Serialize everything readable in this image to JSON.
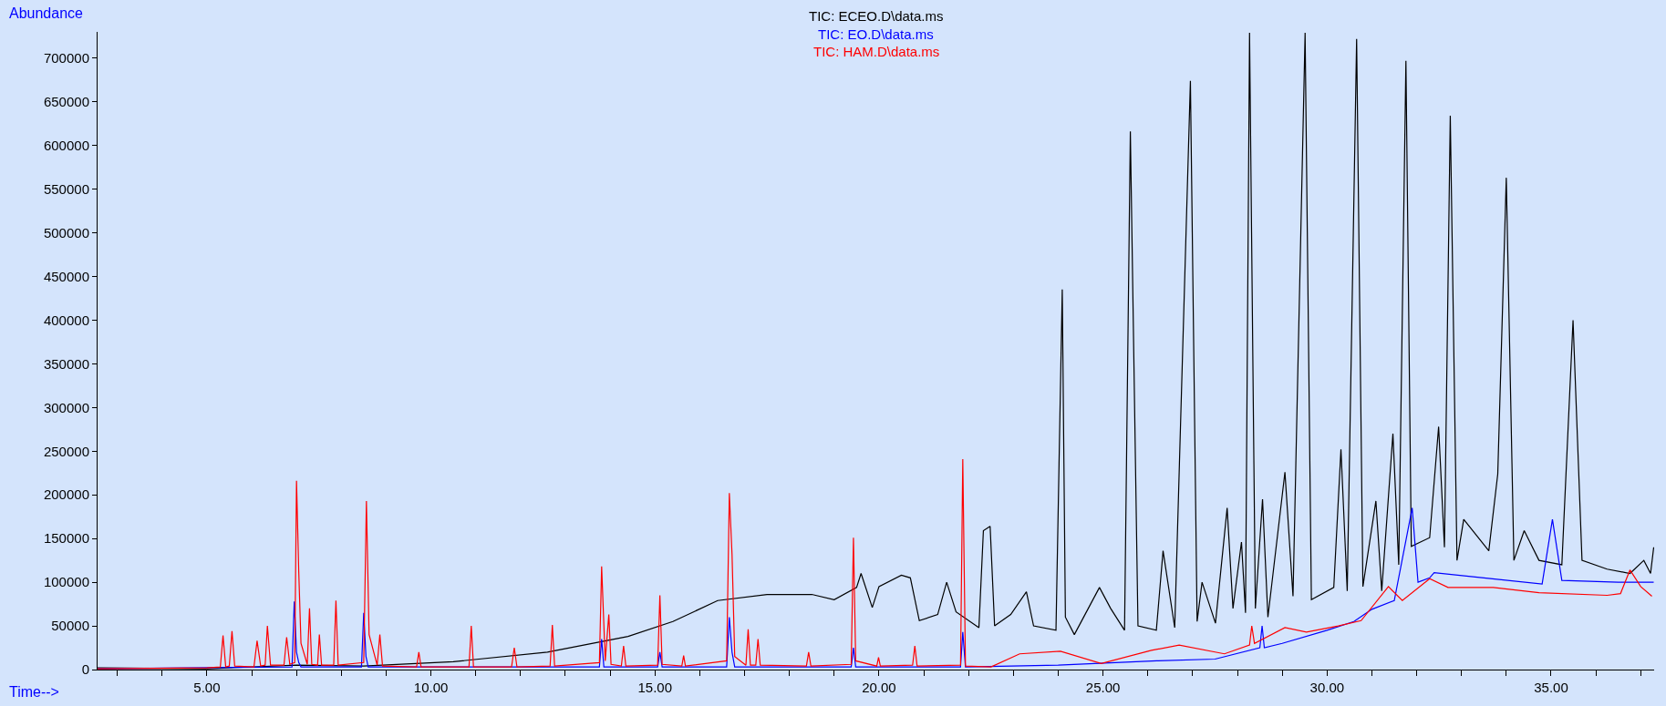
{
  "chart_data": {
    "type": "line",
    "xlabel": "Time-->",
    "ylabel": "Abundance",
    "xlim": [
      2.56,
      37.3
    ],
    "ylim": [
      0,
      730000
    ],
    "xticks": [
      {
        "value": 3,
        "label": null
      },
      {
        "value": 4,
        "label": null
      },
      {
        "value": 5,
        "label": "5.00"
      },
      {
        "value": 6,
        "label": null
      },
      {
        "value": 7,
        "label": null
      },
      {
        "value": 8,
        "label": null
      },
      {
        "value": 9,
        "label": null
      },
      {
        "value": 10,
        "label": "10.00"
      },
      {
        "value": 11,
        "label": null
      },
      {
        "value": 12,
        "label": null
      },
      {
        "value": 13,
        "label": null
      },
      {
        "value": 14,
        "label": null
      },
      {
        "value": 15,
        "label": "15.00"
      },
      {
        "value": 16,
        "label": null
      },
      {
        "value": 17,
        "label": null
      },
      {
        "value": 18,
        "label": null
      },
      {
        "value": 19,
        "label": null
      },
      {
        "value": 20,
        "label": "20.00"
      },
      {
        "value": 21,
        "label": null
      },
      {
        "value": 22,
        "label": null
      },
      {
        "value": 23,
        "label": null
      },
      {
        "value": 24,
        "label": null
      },
      {
        "value": 25,
        "label": "25.00"
      },
      {
        "value": 26,
        "label": null
      },
      {
        "value": 27,
        "label": null
      },
      {
        "value": 28,
        "label": null
      },
      {
        "value": 29,
        "label": null
      },
      {
        "value": 30,
        "label": "30.00"
      },
      {
        "value": 31,
        "label": null
      },
      {
        "value": 32,
        "label": null
      },
      {
        "value": 33,
        "label": null
      },
      {
        "value": 34,
        "label": null
      },
      {
        "value": 35,
        "label": "35.00"
      },
      {
        "value": 36,
        "label": null
      },
      {
        "value": 37,
        "label": null
      }
    ],
    "yticks": [
      0,
      50000,
      100000,
      150000,
      200000,
      250000,
      300000,
      350000,
      400000,
      450000,
      500000,
      550000,
      600000,
      650000,
      700000
    ],
    "grid": false,
    "marker": "none",
    "line_style": "solid",
    "series": [
      {
        "name": "TIC: ECEO.D\\data.ms",
        "color": "#000000",
        "x": [
          2.56,
          5.0,
          7.0,
          8.5,
          10.5,
          12.6,
          14.4,
          15.4,
          16.4,
          17.5,
          18.5,
          19.0,
          19.5,
          19.6,
          19.85,
          20.0,
          20.5,
          20.7,
          20.9,
          21.31,
          21.51,
          21.72,
          22.23,
          22.33,
          22.48,
          22.58,
          22.94,
          23.29,
          23.45,
          23.95,
          24.09,
          24.16,
          24.36,
          24.92,
          25.17,
          25.48,
          25.61,
          25.78,
          26.19,
          26.34,
          26.6,
          26.95,
          27.1,
          27.21,
          27.51,
          27.77,
          27.9,
          28.09,
          28.18,
          28.27,
          28.4,
          28.56,
          28.68,
          29.06,
          29.24,
          29.51,
          29.65,
          30.15,
          30.31,
          30.45,
          30.66,
          30.8,
          31.09,
          31.22,
          31.47,
          31.6,
          31.76,
          31.88,
          32.29,
          32.49,
          32.62,
          32.75,
          32.9,
          33.05,
          33.61,
          33.81,
          34.0,
          34.17,
          34.4,
          34.73,
          35.24,
          35.49,
          35.69,
          36.25,
          36.76,
          37.07,
          37.22,
          37.29
        ],
        "values": [
          2000,
          1000,
          5000,
          4000,
          9000,
          20000,
          38000,
          55000,
          79000,
          86000,
          86000,
          80000,
          94000,
          110000,
          71000,
          95000,
          108000,
          105000,
          56000,
          63000,
          100000,
          66000,
          48000,
          159000,
          164000,
          50000,
          63000,
          89000,
          50000,
          45000,
          435000,
          60000,
          40000,
          94000,
          70000,
          45000,
          616000,
          50000,
          45000,
          136000,
          48000,
          674000,
          55000,
          100000,
          53000,
          185000,
          70000,
          146000,
          65000,
          729000,
          70000,
          195000,
          60000,
          226000,
          84000,
          729000,
          80000,
          94000,
          252000,
          90000,
          722000,
          95000,
          193000,
          90000,
          270000,
          120000,
          697000,
          141000,
          151000,
          278000,
          140000,
          634000,
          125000,
          172000,
          136000,
          224000,
          563000,
          125000,
          159000,
          125000,
          120000,
          400000,
          125000,
          115000,
          110000,
          125000,
          110000,
          140000
        ]
      },
      {
        "name": "TIC: EO.D\\data.ms",
        "color": "#0000ff",
        "x": [
          2.56,
          6.9,
          6.95,
          7.0,
          7.05,
          7.1,
          8.45,
          8.5,
          8.55,
          8.6,
          13.76,
          13.81,
          13.86,
          15.06,
          15.11,
          15.16,
          16.6,
          16.66,
          16.72,
          16.78,
          19.38,
          19.43,
          19.48,
          21.82,
          21.87,
          21.93,
          24.0,
          26.2,
          27.5,
          28.5,
          28.55,
          28.6,
          29.0,
          30.0,
          30.6,
          31.0,
          31.5,
          31.9,
          32.03,
          32.29,
          32.39,
          33.5,
          34.8,
          35.03,
          35.24,
          36.5,
          37.29
        ],
        "values": [
          1000,
          3000,
          78000,
          20000,
          8000,
          3000,
          3000,
          65000,
          15000,
          3000,
          3000,
          35000,
          3000,
          3000,
          20000,
          3000,
          3000,
          60000,
          20000,
          3000,
          3000,
          25000,
          3000,
          3000,
          43000,
          3000,
          5000,
          10000,
          12000,
          25000,
          50000,
          25000,
          30000,
          45000,
          55000,
          69000,
          79000,
          185000,
          100000,
          105000,
          111000,
          105000,
          98000,
          172000,
          102000,
          100000,
          100000
        ]
      },
      {
        "name": "TIC: HAM.D\\data.ms",
        "color": "#ff0000",
        "x": [
          2.56,
          5.0,
          5.3,
          5.36,
          5.42,
          5.5,
          5.56,
          5.62,
          6.05,
          6.12,
          6.2,
          6.3,
          6.35,
          6.42,
          6.72,
          6.78,
          6.85,
          6.96,
          7.0,
          7.05,
          7.1,
          7.24,
          7.29,
          7.34,
          7.47,
          7.51,
          7.56,
          7.83,
          7.88,
          7.93,
          8.5,
          8.56,
          8.62,
          8.8,
          8.86,
          8.92,
          9.68,
          9.73,
          9.78,
          10.85,
          10.9,
          10.95,
          11.8,
          11.86,
          11.92,
          12.66,
          12.71,
          12.76,
          13.76,
          13.81,
          13.89,
          13.97,
          14.02,
          14.25,
          14.3,
          14.35,
          15.06,
          15.11,
          15.16,
          15.6,
          15.64,
          15.68,
          16.6,
          16.66,
          16.72,
          16.78,
          17.03,
          17.08,
          17.13,
          17.25,
          17.3,
          17.35,
          18.38,
          18.43,
          18.48,
          19.38,
          19.43,
          19.48,
          19.95,
          19.99,
          20.03,
          20.75,
          20.8,
          20.85,
          21.82,
          21.87,
          21.93,
          22.5,
          23.14,
          24.05,
          24.96,
          26.08,
          26.7,
          27.71,
          28.27,
          28.32,
          28.38,
          29.06,
          29.54,
          30.25,
          30.76,
          31.37,
          31.68,
          32.29,
          32.7,
          33.71,
          34.73,
          36.25,
          36.55,
          36.76,
          37.0,
          37.25
        ],
        "values": [
          1000,
          2000,
          3000,
          39000,
          3000,
          4000,
          44000,
          4000,
          3000,
          33000,
          4000,
          5000,
          50000,
          5000,
          5000,
          37000,
          6000,
          8000,
          216000,
          112000,
          30000,
          6000,
          70000,
          6000,
          5000,
          40000,
          5000,
          5000,
          79000,
          5000,
          8000,
          193000,
          40000,
          5000,
          40000,
          4000,
          3000,
          20000,
          3000,
          3000,
          50000,
          3000,
          3000,
          25000,
          3000,
          4000,
          51000,
          4000,
          8000,
          118000,
          10000,
          63000,
          6000,
          4000,
          27000,
          4000,
          5000,
          85000,
          6000,
          4000,
          16000,
          4000,
          10000,
          202000,
          132000,
          15000,
          5000,
          46000,
          5000,
          5000,
          35000,
          5000,
          4000,
          20000,
          4000,
          6000,
          151000,
          10000,
          4000,
          14000,
          4000,
          5000,
          27000,
          4000,
          5000,
          241000,
          4000,
          3000,
          18000,
          21000,
          7000,
          22000,
          28000,
          18000,
          28000,
          50000,
          30000,
          48000,
          43000,
          50000,
          56000,
          95000,
          79000,
          104000,
          94000,
          94000,
          88000,
          85000,
          87000,
          114000,
          95000,
          84000
        ]
      }
    ]
  }
}
